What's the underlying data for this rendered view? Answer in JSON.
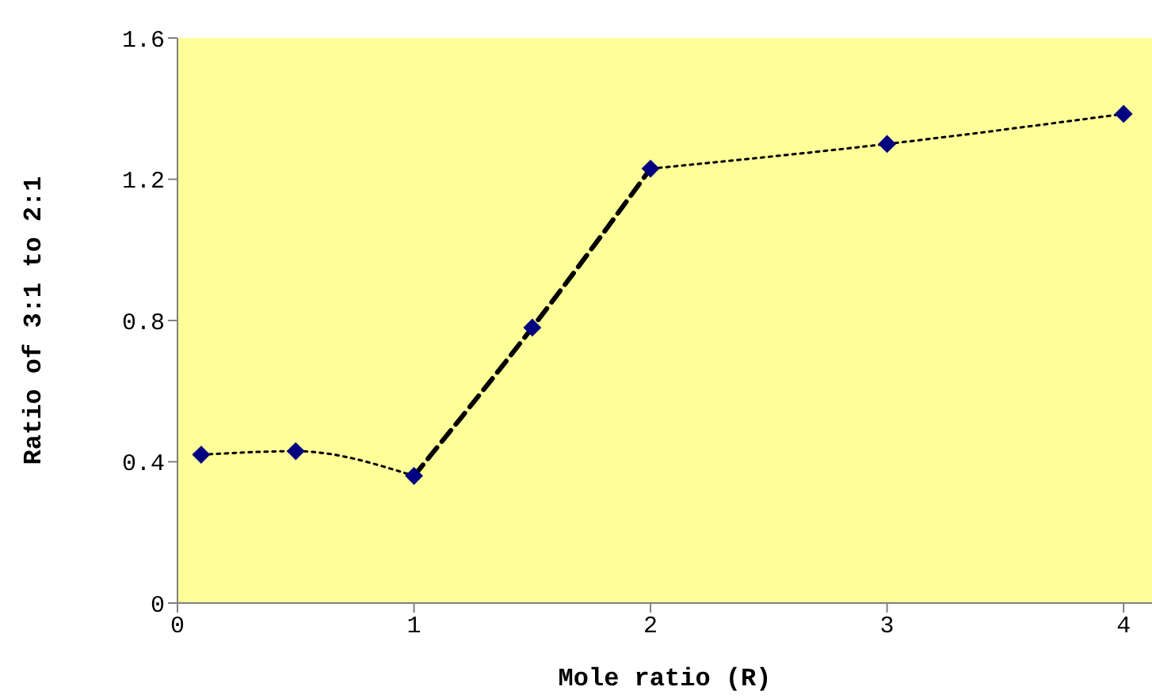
{
  "chart_data": {
    "type": "line",
    "xlabel": "Mole ratio (R)",
    "ylabel": "Ratio of 3:1 to 2:1",
    "xlim": [
      0,
      4.12
    ],
    "xticks": [
      0,
      1,
      2,
      3,
      4
    ],
    "ylim": [
      0,
      1.6
    ],
    "yticks": [
      0,
      0.4,
      0.8,
      1.2,
      1.6
    ],
    "grid": false,
    "legend": false,
    "series": [
      {
        "type": "scatter",
        "color": "#000080",
        "marker": "diamond",
        "x": [
          0.1,
          0.5,
          1,
          1.5,
          2,
          3,
          4
        ],
        "values": [
          0.42,
          0.43,
          0.36,
          0.78,
          1.23,
          1.3,
          1.385
        ]
      },
      {
        "type": "line",
        "color": "#000000",
        "marker": "none",
        "line_style": "dotted",
        "x": [
          0.1,
          0.5,
          1
        ],
        "values": [
          0.42,
          0.43,
          0.36
        ]
      },
      {
        "type": "line",
        "color": "#000000",
        "marker": "none",
        "line_style": "dashed",
        "x": [
          1,
          1.5,
          2
        ],
        "values": [
          0.36,
          0.78,
          1.23
        ]
      },
      {
        "type": "line",
        "color": "#000000",
        "marker": "none",
        "line_style": "dotted",
        "x": [
          2,
          3,
          4
        ],
        "values": [
          1.23,
          1.3,
          1.385
        ]
      }
    ]
  }
}
